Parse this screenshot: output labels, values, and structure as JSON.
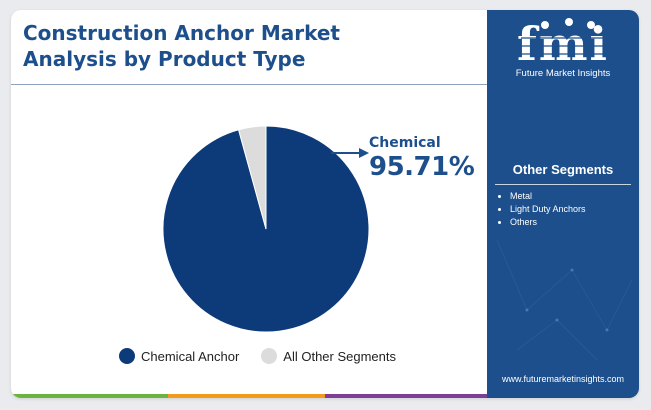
{
  "title_line1": "Construction Anchor Market",
  "title_line2": "Analysis by Product Type",
  "callout": {
    "name": "Chemical",
    "value_text": "95.71%"
  },
  "chart_data": {
    "type": "pie",
    "title": "Construction Anchor Market Analysis by Product Type",
    "slices": [
      {
        "name": "Chemical Anchor",
        "value": 95.71,
        "color": "#0d3b7a"
      },
      {
        "name": "All Other Segments",
        "value": 4.29,
        "color": "#dcdcdc"
      }
    ],
    "legend_placement": "bottom"
  },
  "sidebar": {
    "logo_text": "fmi",
    "logo_subtitle": "Future Market Insights",
    "heading": "Other Segments",
    "segments": [
      "Metal",
      "Light Duty Anchors",
      "Others"
    ],
    "website": "www.futuremarketinsights.com"
  },
  "colors": {
    "brand_blue": "#1d4f8c",
    "pie_main": "#0d3b7a",
    "pie_other": "#dcdcdc"
  }
}
